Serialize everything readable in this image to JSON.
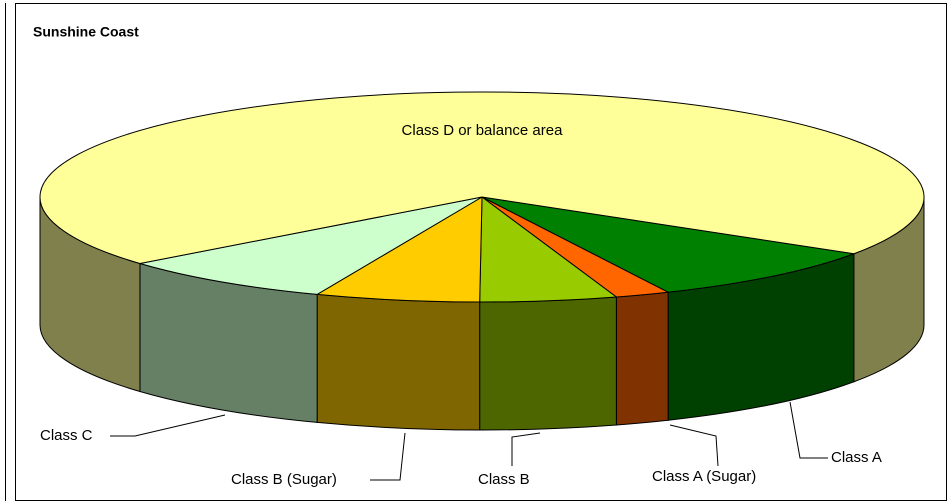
{
  "chart_data": {
    "type": "pie",
    "title": "Sunshine Coast",
    "categories": [
      "Class A",
      "Class A (Sugar)",
      "Class B",
      "Class B (Sugar)",
      "Class C",
      "Class D or balance area"
    ],
    "values": [
      9,
      2,
      5,
      6,
      8,
      70
    ],
    "colors": [
      "#008000",
      "#ff6600",
      "#99cc00",
      "#ffcc00",
      "#ccffcc",
      "#ffff99"
    ]
  }
}
